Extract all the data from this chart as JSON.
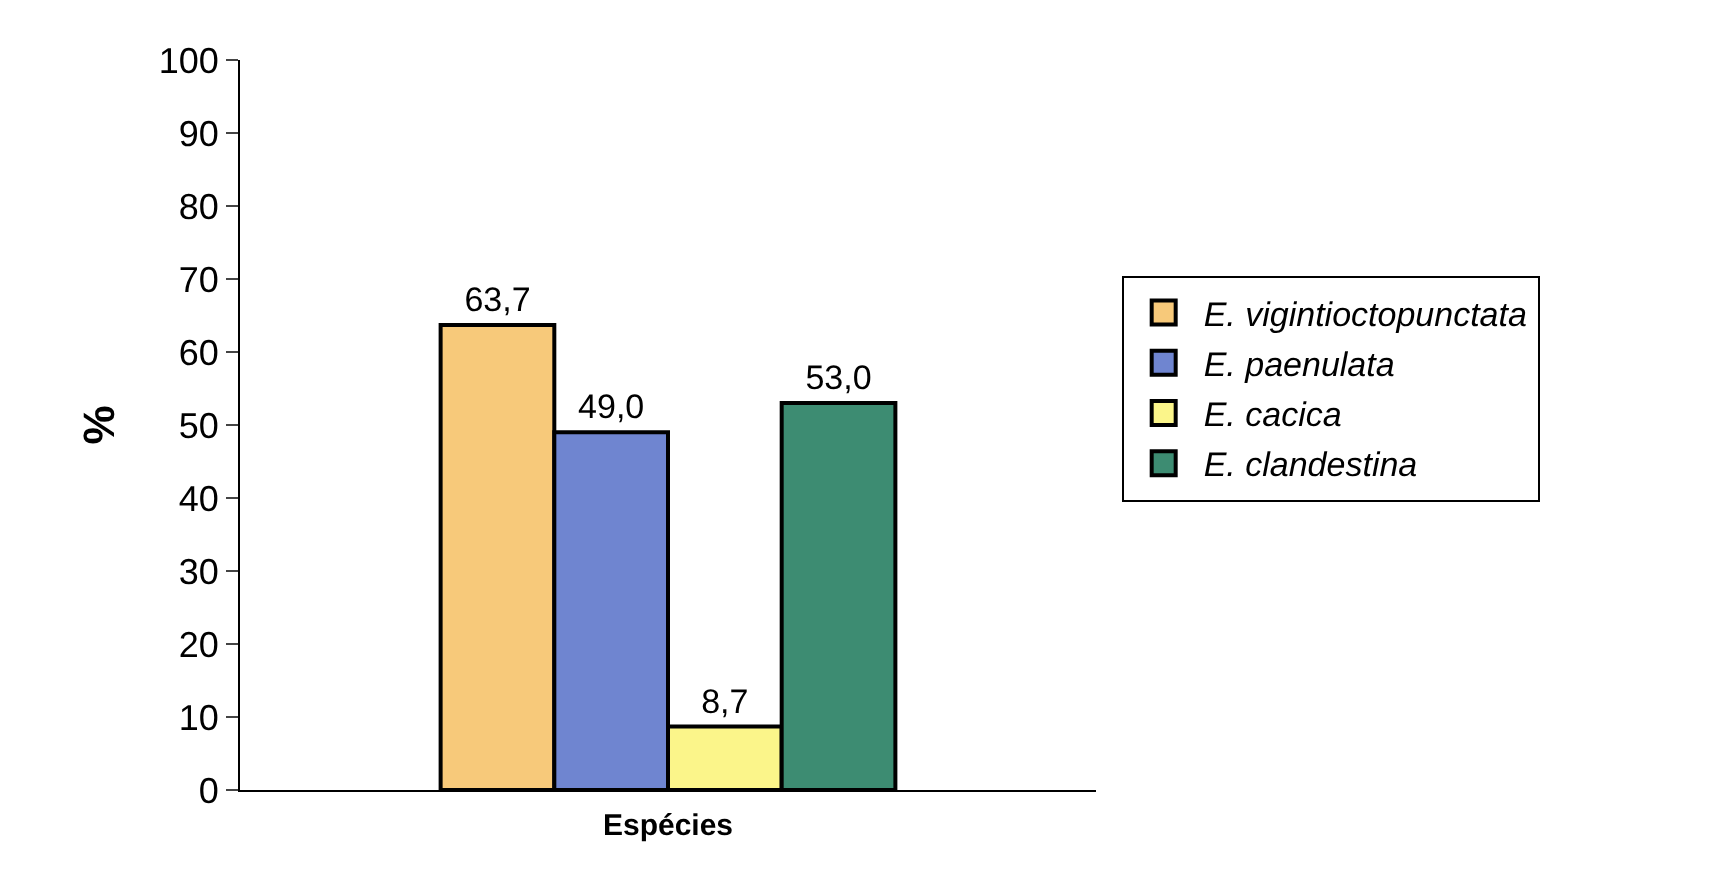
{
  "chart_data": {
    "type": "bar",
    "xlabel": "Espécies",
    "ylabel": "%",
    "categories": [
      null
    ],
    "series": [
      {
        "name": "E. vigintioctopunctata",
        "color": "#f7c97a",
        "values": [
          63.7
        ],
        "value_labels": [
          "63,7"
        ]
      },
      {
        "name": "E. paenulata",
        "color": "#6f85d0",
        "values": [
          49.0
        ],
        "value_labels": [
          "49,0"
        ]
      },
      {
        "name": "E. cacica",
        "color": "#fbf58a",
        "values": [
          8.7
        ],
        "value_labels": [
          "8,7"
        ]
      },
      {
        "name": "E. clandestina",
        "color": "#3d8c72",
        "values": [
          53.0
        ],
        "value_labels": [
          "53,0"
        ]
      }
    ],
    "ylim": [
      0,
      100
    ],
    "yticks": [
      0,
      10,
      20,
      30,
      40,
      50,
      60,
      70,
      80,
      90,
      100
    ],
    "legend": "right"
  }
}
